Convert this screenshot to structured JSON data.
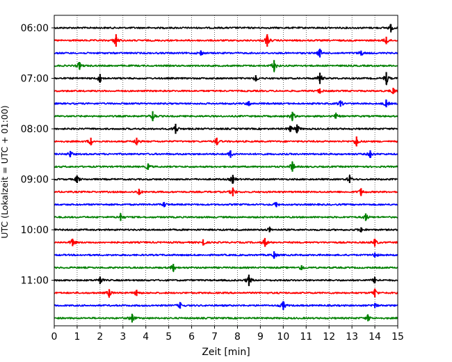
{
  "chart_data": {
    "type": "line",
    "title": "",
    "xlabel": "Zeit  [min]",
    "ylabel": "UTC (Lokalzeit = UTC + 01:00)",
    "xlim": [
      0,
      15
    ],
    "x_ticks": [
      0,
      1,
      2,
      3,
      4,
      5,
      6,
      7,
      8,
      9,
      10,
      11,
      12,
      13,
      14,
      15
    ],
    "grid": "vertical dotted lines at each minute",
    "trace_interval_minutes": 15,
    "y_tick_labels": [
      "06:00",
      "07:00",
      "08:00",
      "09:00",
      "10:00",
      "11:00"
    ],
    "trace_colors": [
      "#000000",
      "#ff0000",
      "#0000ff",
      "#008000"
    ],
    "traces": [
      {
        "start": "06:00",
        "color": "#000000",
        "spikes": [
          [
            14.7,
            0.6
          ]
        ]
      },
      {
        "start": "06:15",
        "color": "#ff0000",
        "spikes": [
          [
            2.7,
            1.0
          ],
          [
            9.3,
            1.0
          ],
          [
            14.5,
            0.6
          ]
        ]
      },
      {
        "start": "06:30",
        "color": "#0000ff",
        "spikes": [
          [
            6.4,
            0.4
          ],
          [
            11.6,
            0.7
          ],
          [
            13.4,
            0.4
          ]
        ]
      },
      {
        "start": "06:45",
        "color": "#008000",
        "spikes": [
          [
            1.1,
            0.6
          ],
          [
            9.6,
            0.9
          ]
        ]
      },
      {
        "start": "07:00",
        "color": "#000000",
        "spikes": [
          [
            2.0,
            0.7
          ],
          [
            8.8,
            0.5
          ],
          [
            11.6,
            0.9
          ],
          [
            14.5,
            1.0
          ]
        ]
      },
      {
        "start": "07:15",
        "color": "#ff0000",
        "spikes": [
          [
            11.6,
            0.4
          ],
          [
            14.8,
            0.5
          ]
        ]
      },
      {
        "start": "07:30",
        "color": "#0000ff",
        "spikes": [
          [
            8.5,
            0.4
          ],
          [
            12.5,
            0.5
          ],
          [
            14.5,
            0.6
          ]
        ]
      },
      {
        "start": "07:45",
        "color": "#008000",
        "spikes": [
          [
            4.3,
            0.8
          ],
          [
            10.4,
            0.7
          ],
          [
            12.3,
            0.4
          ]
        ]
      },
      {
        "start": "08:00",
        "color": "#000000",
        "spikes": [
          [
            5.3,
            0.8
          ],
          [
            10.3,
            0.5
          ],
          [
            10.6,
            0.7
          ]
        ]
      },
      {
        "start": "08:15",
        "color": "#ff0000",
        "spikes": [
          [
            1.6,
            0.6
          ],
          [
            3.6,
            0.6
          ],
          [
            7.1,
            0.6
          ],
          [
            13.2,
            0.8
          ]
        ]
      },
      {
        "start": "08:30",
        "color": "#0000ff",
        "spikes": [
          [
            0.7,
            0.5
          ],
          [
            7.7,
            0.6
          ],
          [
            13.8,
            0.6
          ]
        ]
      },
      {
        "start": "08:45",
        "color": "#008000",
        "spikes": [
          [
            4.1,
            0.5
          ],
          [
            10.4,
            0.8
          ]
        ]
      },
      {
        "start": "09:00",
        "color": "#000000",
        "spikes": [
          [
            1.0,
            0.6
          ],
          [
            7.8,
            0.7
          ],
          [
            12.9,
            0.6
          ]
        ]
      },
      {
        "start": "09:15",
        "color": "#ff0000",
        "spikes": [
          [
            3.7,
            0.5
          ],
          [
            7.8,
            0.7
          ],
          [
            13.4,
            0.6
          ]
        ]
      },
      {
        "start": "09:30",
        "color": "#0000ff",
        "spikes": [
          [
            4.8,
            0.4
          ],
          [
            9.7,
            0.4
          ]
        ]
      },
      {
        "start": "09:45",
        "color": "#008000",
        "spikes": [
          [
            2.9,
            0.6
          ],
          [
            13.6,
            0.6
          ]
        ]
      },
      {
        "start": "10:00",
        "color": "#000000",
        "spikes": [
          [
            9.4,
            0.4
          ],
          [
            13.4,
            0.4
          ]
        ]
      },
      {
        "start": "10:15",
        "color": "#ff0000",
        "spikes": [
          [
            0.8,
            0.6
          ],
          [
            6.5,
            0.5
          ],
          [
            9.2,
            0.7
          ],
          [
            14.0,
            0.6
          ]
        ]
      },
      {
        "start": "10:30",
        "color": "#0000ff",
        "spikes": [
          [
            9.6,
            0.6
          ],
          [
            14.0,
            0.4
          ]
        ]
      },
      {
        "start": "10:45",
        "color": "#008000",
        "spikes": [
          [
            5.2,
            0.6
          ],
          [
            10.8,
            0.4
          ]
        ]
      },
      {
        "start": "11:00",
        "color": "#000000",
        "spikes": [
          [
            2.0,
            0.6
          ],
          [
            8.5,
            0.9
          ],
          [
            14.0,
            0.5
          ]
        ]
      },
      {
        "start": "11:15",
        "color": "#ff0000",
        "spikes": [
          [
            2.4,
            0.6
          ],
          [
            3.6,
            0.5
          ],
          [
            14.0,
            0.7
          ]
        ]
      },
      {
        "start": "11:30",
        "color": "#0000ff",
        "spikes": [
          [
            5.5,
            0.5
          ],
          [
            10.0,
            0.7
          ],
          [
            14.0,
            0.4
          ]
        ]
      },
      {
        "start": "11:45",
        "color": "#008000",
        "spikes": [
          [
            3.4,
            0.7
          ],
          [
            13.7,
            0.5
          ]
        ]
      }
    ]
  }
}
